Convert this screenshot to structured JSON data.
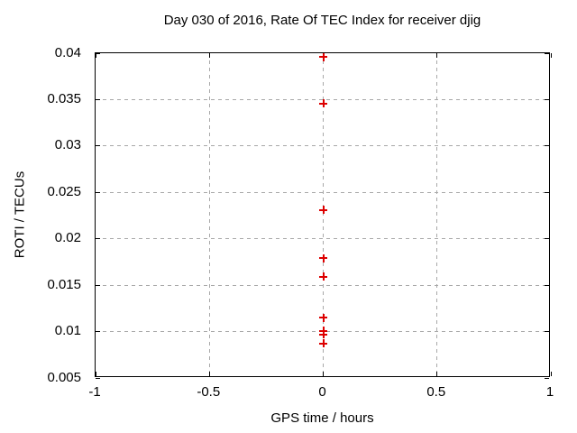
{
  "colors": {
    "background": "#ffffff",
    "text": "#000000",
    "axis": "#000000",
    "grid": "#a8a8a8",
    "marker": "#dd0000"
  },
  "chart_data": {
    "type": "scatter",
    "title": "Day 030 of 2016, Rate Of TEC Index for receiver djig",
    "xlabel": "GPS time / hours",
    "ylabel": "ROTI / TECUs",
    "xlim": [
      -1,
      1
    ],
    "ylim": [
      0.005,
      0.04
    ],
    "xticks": {
      "values": [
        -1,
        -0.5,
        0,
        0.5,
        1
      ],
      "labels": [
        "-1",
        "-0.5",
        "0",
        "0.5",
        "1"
      ]
    },
    "yticks": {
      "values": [
        0.005,
        0.01,
        0.015,
        0.02,
        0.025,
        0.03,
        0.035,
        0.04
      ],
      "labels": [
        "0.005",
        "0.01",
        "0.015",
        "0.02",
        "0.025",
        "0.03",
        "0.035",
        "0.04"
      ]
    },
    "grid": true,
    "legend_position": "none",
    "series": [
      {
        "name": "ROTI",
        "marker": "plus",
        "color": "#dd0000",
        "x": [
          0,
          0,
          0,
          0,
          0,
          0,
          0,
          0,
          0
        ],
        "y": [
          0.0396,
          0.0346,
          0.0231,
          0.0179,
          0.0159,
          0.0115,
          0.0101,
          0.0097,
          0.0087
        ]
      }
    ]
  }
}
